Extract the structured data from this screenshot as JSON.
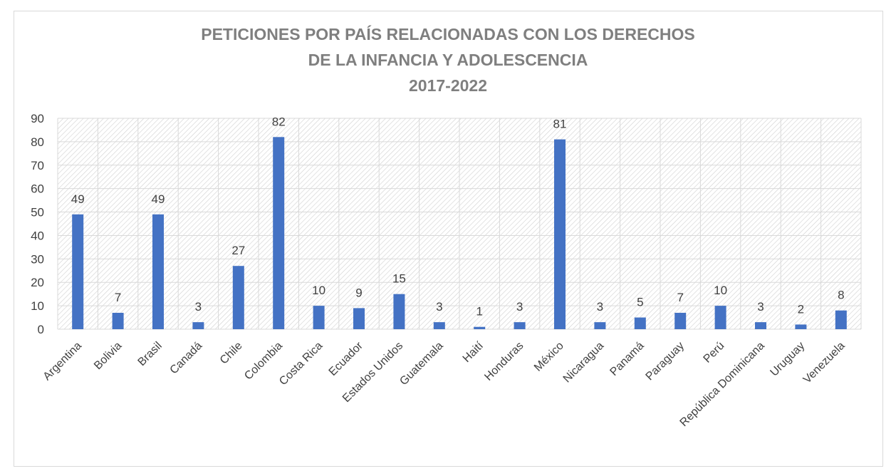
{
  "chart_data": {
    "type": "bar",
    "title_lines": [
      "PETICIONES POR PAÍS RELACIONADAS CON LOS DERECHOS",
      "DE LA INFANCIA Y ADOLESCENCIA",
      "2017-2022"
    ],
    "categories": [
      "Argentina",
      "Bolivia",
      "Brasil",
      "Canadá",
      "Chile",
      "Colombia",
      "Costa Rica",
      "Ecuador",
      "Estados Unidos",
      "Guatemala",
      "Haití",
      "Honduras",
      "México",
      "Nicaragua",
      "Panamá",
      "Paraguay",
      "Perú",
      "República Dominicana",
      "Uruguay",
      "Venezuela"
    ],
    "values": [
      49,
      7,
      49,
      3,
      27,
      82,
      10,
      9,
      15,
      3,
      1,
      3,
      81,
      3,
      5,
      7,
      10,
      3,
      2,
      8
    ],
    "yticks": [
      0,
      10,
      20,
      30,
      40,
      50,
      60,
      70,
      80,
      90
    ],
    "ylim": [
      0,
      90
    ],
    "grid": true,
    "legend": "none",
    "colors": {
      "bar": "#4472c4",
      "grid": "#d9d9d9",
      "hatch": "#d0d0d0",
      "text": "#404040",
      "title": "#7f7f7f"
    }
  }
}
